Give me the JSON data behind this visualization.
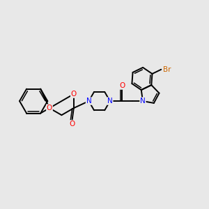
{
  "background_color": "#e8e8e8",
  "bond_color": "#000000",
  "atom_colors": {
    "O": "#ff0000",
    "N": "#0000ff",
    "Br": "#cc6600",
    "C": "#000000"
  },
  "figsize": [
    3.0,
    3.0
  ],
  "dpi": 100
}
